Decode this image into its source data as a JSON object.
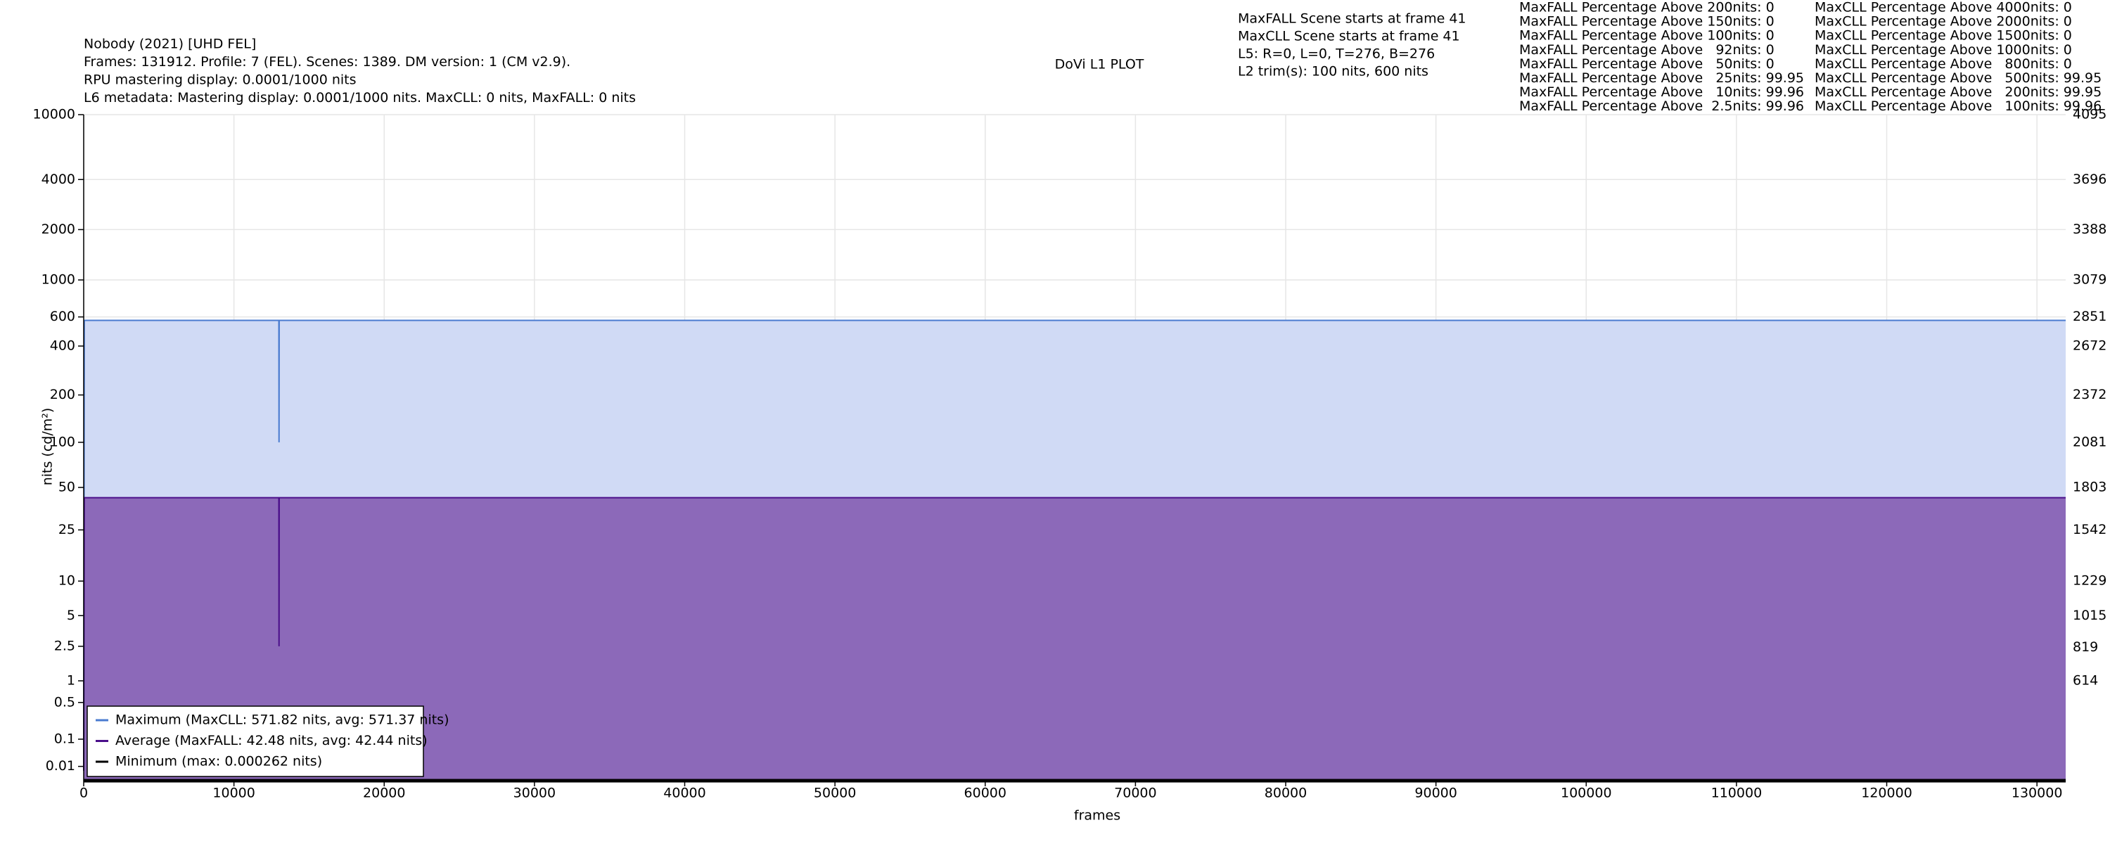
{
  "chart_data": {
    "type": "area",
    "title": "DoVi L1 PLOT",
    "header_lines": [
      "Nobody (2021) [UHD FEL]",
      "Frames: 131912. Profile: 7 (FEL). Scenes: 1389. DM version: 1 (CM v2.9).",
      "RPU mastering display: 0.0001/1000 nits",
      "L6 metadata: Mastering display: 0.0001/1000 nits. MaxCLL: 0 nits, MaxFALL: 0 nits"
    ],
    "scene_info": [
      "MaxFALL Scene starts at frame 41",
      "MaxCLL Scene starts at frame 41",
      "L5: R=0, L=0, T=276, B=276",
      "L2 trim(s): 100 nits, 600 nits"
    ],
    "maxfall_stats": [
      "MaxFALL Percentage Above 200nits: 0",
      "MaxFALL Percentage Above 150nits: 0",
      "MaxFALL Percentage Above 100nits: 0",
      "MaxFALL Percentage Above   92nits: 0",
      "MaxFALL Percentage Above   50nits: 0",
      "MaxFALL Percentage Above   25nits: 99.95",
      "MaxFALL Percentage Above   10nits: 99.96",
      "MaxFALL Percentage Above  2.5nits: 99.96"
    ],
    "maxcll_stats": [
      "MaxCLL Percentage Above 4000nits: 0",
      "MaxCLL Percentage Above 2000nits: 0",
      "MaxCLL Percentage Above 1500nits: 0",
      "MaxCLL Percentage Above 1000nits: 0",
      "MaxCLL Percentage Above   800nits: 0",
      "MaxCLL Percentage Above   500nits: 99.95",
      "MaxCLL Percentage Above   200nits: 99.95",
      "MaxCLL Percentage Above   100nits: 99.96"
    ],
    "xlabel": "frames",
    "ylabel": "nits (cd/m²)",
    "yscale": "pq",
    "grid": true,
    "legend": "lower left",
    "x": [
      0,
      41,
      12990,
      13000,
      13010,
      131911
    ],
    "series": [
      {
        "name": "Maximum (MaxCLL: 571.82 nits, avg: 571.37 nits)",
        "color": "#4a7bd0",
        "fill": "#d0daf5",
        "values": [
          0.005,
          571.82,
          571.82,
          100,
          571.82,
          571.82
        ]
      },
      {
        "name": "Average (MaxFALL: 42.48 nits, avg: 42.44 nits)",
        "color": "#4b0f8a",
        "fill": "#8c69b9",
        "values": [
          0.005,
          42.48,
          42.48,
          2.5,
          42.48,
          42.48
        ]
      },
      {
        "name": "Minimum (max: 0.000262 nits)",
        "color": "#000000",
        "values": [
          0,
          0,
          0,
          0,
          0,
          0
        ]
      }
    ],
    "xlim": [
      0,
      131912
    ],
    "xticks": [
      0,
      10000,
      20000,
      30000,
      40000,
      50000,
      60000,
      70000,
      80000,
      90000,
      100000,
      110000,
      120000,
      130000
    ],
    "ylim": [
      0,
      10000
    ],
    "yticks": [
      10000,
      4000,
      2000,
      1000,
      600,
      400,
      200,
      100,
      50,
      25,
      10,
      5,
      2.5,
      1,
      0.5,
      0.1,
      0.01
    ],
    "y2lim": [
      0,
      4095
    ],
    "y2ticks": [
      4095,
      3696,
      3388,
      3079,
      2851,
      2672,
      2372,
      2081,
      1803,
      1542,
      1229,
      1015,
      819,
      614
    ]
  }
}
